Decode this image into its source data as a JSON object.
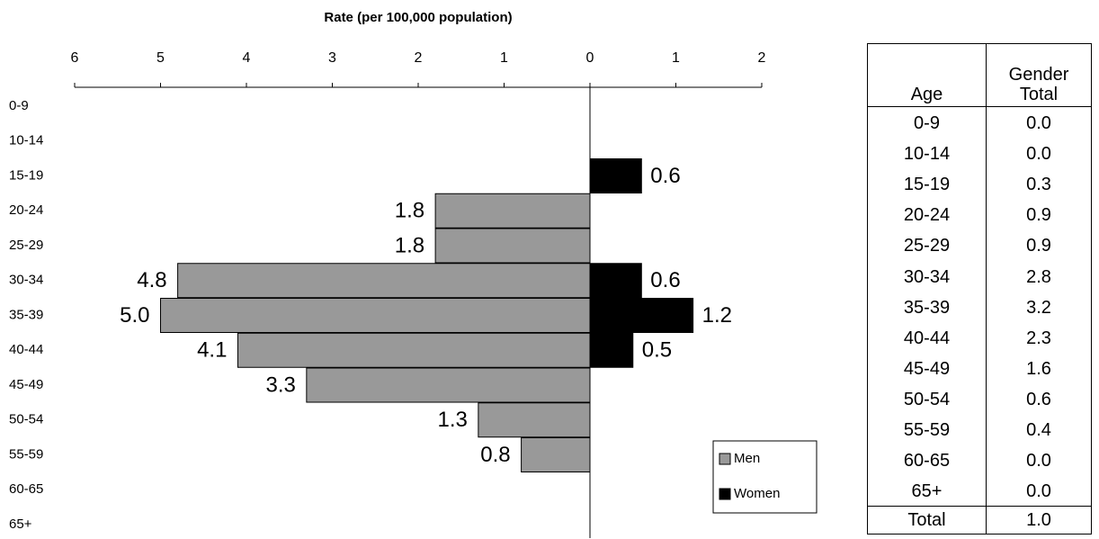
{
  "chart_data": {
    "type": "pyramid",
    "xlabel": "Rate (per 100,000 population)",
    "categories": [
      "0-9",
      "10-14",
      "15-19",
      "20-24",
      "25-29",
      "30-34",
      "35-39",
      "40-44",
      "45-49",
      "50-54",
      "55-59",
      "60-65",
      "65+"
    ],
    "series": [
      {
        "name": "Men",
        "color": "#999999",
        "values": [
          null,
          null,
          null,
          -1.8,
          -1.8,
          -4.8,
          -5.0,
          -4.1,
          -3.3,
          -1.3,
          -0.8,
          null,
          null
        ],
        "value_labels": [
          null,
          null,
          null,
          "1.8",
          "1.8",
          "4.8",
          "5.0",
          "4.1",
          "3.3",
          "1.3",
          "0.8",
          null,
          null
        ]
      },
      {
        "name": "Women",
        "color": "#000000",
        "values": [
          null,
          null,
          0.6,
          null,
          null,
          0.6,
          1.2,
          0.5,
          null,
          null,
          null,
          null,
          null
        ],
        "value_labels": [
          null,
          null,
          "0.6",
          null,
          null,
          "0.6",
          "1.2",
          "0.5",
          null,
          null,
          null,
          null,
          null
        ]
      }
    ],
    "xlim": [
      -6,
      2
    ],
    "xticks": [
      {
        "value": -6,
        "label": "6"
      },
      {
        "value": -5,
        "label": "5"
      },
      {
        "value": -4,
        "label": "4"
      },
      {
        "value": -3,
        "label": "3"
      },
      {
        "value": -2,
        "label": "2"
      },
      {
        "value": -1,
        "label": "1"
      },
      0,
      1,
      2
    ],
    "negative_tick_color": "#e00000",
    "tick_color": "#000000",
    "legend": "lower right"
  },
  "table": {
    "columns": [
      "Age",
      "Gender Total"
    ],
    "rows": [
      [
        "0-9",
        "0.0"
      ],
      [
        "10-14",
        "0.0"
      ],
      [
        "15-19",
        "0.3"
      ],
      [
        "20-24",
        "0.9"
      ],
      [
        "25-29",
        "0.9"
      ],
      [
        "30-34",
        "2.8"
      ],
      [
        "35-39",
        "3.2"
      ],
      [
        "40-44",
        "2.3"
      ],
      [
        "45-49",
        "1.6"
      ],
      [
        "50-54",
        "0.6"
      ],
      [
        "55-59",
        "0.4"
      ],
      [
        "60-65",
        "0.0"
      ],
      [
        "65+",
        "0.0"
      ]
    ],
    "total": [
      "Total",
      "1.0"
    ]
  }
}
